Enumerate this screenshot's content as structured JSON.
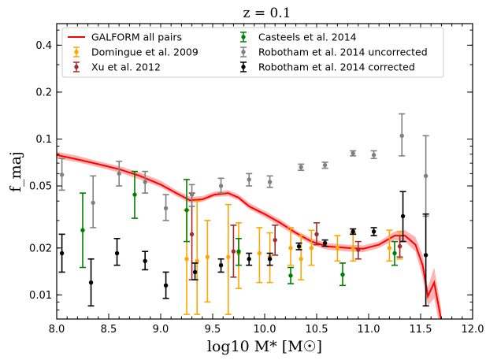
{
  "chart_data": {
    "type": "scatter",
    "title": "z = 0.1",
    "xlabel": "log10 M* [M☉]",
    "ylabel": "f_maj",
    "xlim": [
      8.0,
      12.0
    ],
    "ylim": [
      0.007,
      0.55
    ],
    "yscale": "log",
    "xticks": [
      "8.0",
      "8.5",
      "9.0",
      "9.5",
      "10.0",
      "10.5",
      "11.0",
      "11.5",
      "12.0"
    ],
    "yticks": [
      "0.01",
      "0.02",
      "0.05",
      "0.1",
      "0.2",
      "0.4"
    ],
    "grid": false,
    "legend_position": "top",
    "model": {
      "name": "GALFORM all pairs",
      "color": "#ff0000",
      "band_color": "#ffb3b3",
      "points": [
        [
          8.0,
          0.079,
          0.075,
          0.083
        ],
        [
          8.2,
          0.074,
          0.071,
          0.078
        ],
        [
          8.4,
          0.069,
          0.066,
          0.072
        ],
        [
          8.6,
          0.064,
          0.061,
          0.067
        ],
        [
          8.8,
          0.058,
          0.055,
          0.061
        ],
        [
          9.0,
          0.051,
          0.049,
          0.054
        ],
        [
          9.15,
          0.045,
          0.043,
          0.047
        ],
        [
          9.28,
          0.0405,
          0.039,
          0.0425
        ],
        [
          9.4,
          0.041,
          0.0395,
          0.043
        ],
        [
          9.52,
          0.044,
          0.0425,
          0.046
        ],
        [
          9.65,
          0.045,
          0.043,
          0.047
        ],
        [
          9.75,
          0.042,
          0.0405,
          0.044
        ],
        [
          9.85,
          0.037,
          0.0355,
          0.039
        ],
        [
          10.0,
          0.033,
          0.0315,
          0.0345
        ],
        [
          10.15,
          0.029,
          0.0275,
          0.0305
        ],
        [
          10.3,
          0.025,
          0.024,
          0.026
        ],
        [
          10.45,
          0.022,
          0.021,
          0.023
        ],
        [
          10.6,
          0.0205,
          0.0195,
          0.0215
        ],
        [
          10.8,
          0.02,
          0.019,
          0.021
        ],
        [
          10.95,
          0.0198,
          0.0188,
          0.0208
        ],
        [
          11.1,
          0.021,
          0.02,
          0.022
        ],
        [
          11.25,
          0.024,
          0.0225,
          0.0255
        ],
        [
          11.35,
          0.024,
          0.022,
          0.026
        ],
        [
          11.45,
          0.021,
          0.019,
          0.0235
        ],
        [
          11.52,
          0.0155,
          0.013,
          0.018
        ],
        [
          11.57,
          0.0098,
          0.0085,
          0.0112
        ],
        [
          11.63,
          0.012,
          0.0095,
          0.015
        ],
        [
          11.7,
          0.0068,
          0.0055,
          0.008
        ]
      ]
    },
    "series": [
      {
        "name": "Domingue et al. 2009",
        "color": "#ffa500",
        "points": [
          [
            9.25,
            0.017,
            0.0075,
            0.035
          ],
          [
            9.35,
            0.0165,
            0.0075,
            0.04
          ],
          [
            9.45,
            0.0175,
            0.009,
            0.03
          ],
          [
            9.65,
            0.0175,
            0.0075,
            0.038
          ],
          [
            9.75,
            0.0185,
            0.011,
            0.029
          ],
          [
            9.95,
            0.0185,
            0.012,
            0.027
          ],
          [
            10.05,
            0.0175,
            0.012,
            0.025
          ],
          [
            10.25,
            0.02,
            0.0155,
            0.027
          ],
          [
            10.35,
            0.017,
            0.0125,
            0.024
          ],
          [
            10.45,
            0.02,
            0.0155,
            0.026
          ],
          [
            10.7,
            0.02,
            0.0165,
            0.024
          ],
          [
            10.85,
            0.02,
            0.0165,
            0.025
          ],
          [
            11.2,
            0.02,
            0.0165,
            0.026
          ],
          [
            11.3,
            0.0205,
            0.017,
            0.0255
          ]
        ]
      },
      {
        "name": "Xu et al. 2012",
        "color": "#a52a2a",
        "points": [
          [
            9.3,
            0.0245,
            0.0125,
            0.045
          ],
          [
            9.7,
            0.019,
            0.013,
            0.028
          ],
          [
            10.1,
            0.0225,
            0.018,
            0.028
          ],
          [
            10.5,
            0.0245,
            0.021,
            0.029
          ],
          [
            10.9,
            0.0195,
            0.017,
            0.022
          ],
          [
            11.3,
            0.0205,
            0.0175,
            0.024
          ]
        ]
      },
      {
        "name": "Casteels et al. 2014",
        "color": "#008000",
        "points": [
          [
            8.25,
            0.026,
            0.015,
            0.045
          ],
          [
            8.75,
            0.044,
            0.031,
            0.062
          ],
          [
            9.25,
            0.035,
            0.022,
            0.055
          ],
          [
            9.75,
            0.019,
            0.0155,
            0.023
          ],
          [
            10.25,
            0.0133,
            0.0118,
            0.015
          ],
          [
            10.75,
            0.0135,
            0.0115,
            0.016
          ],
          [
            11.25,
            0.0185,
            0.0155,
            0.022
          ]
        ]
      },
      {
        "name": "Robotham et al. 2014 uncorrected",
        "color": "#808080",
        "points": [
          [
            8.05,
            0.059,
            0.047,
            0.075
          ],
          [
            8.35,
            0.039,
            0.027,
            0.058
          ],
          [
            8.6,
            0.06,
            0.05,
            0.072
          ],
          [
            8.85,
            0.053,
            0.045,
            0.062
          ],
          [
            9.05,
            0.036,
            0.03,
            0.044
          ],
          [
            9.3,
            0.044,
            0.037,
            0.051
          ],
          [
            9.58,
            0.05,
            0.045,
            0.056
          ],
          [
            9.85,
            0.055,
            0.05,
            0.06
          ],
          [
            10.05,
            0.053,
            0.049,
            0.058
          ],
          [
            10.35,
            0.066,
            0.063,
            0.069
          ],
          [
            10.58,
            0.068,
            0.065,
            0.071
          ],
          [
            10.85,
            0.081,
            0.078,
            0.084
          ],
          [
            11.05,
            0.079,
            0.075,
            0.084
          ],
          [
            11.32,
            0.105,
            0.078,
            0.145
          ],
          [
            11.55,
            0.058,
            0.032,
            0.105
          ]
        ]
      },
      {
        "name": "Robotham et al. 2014 corrected",
        "color": "#000000",
        "points": [
          [
            8.05,
            0.0185,
            0.014,
            0.0245
          ],
          [
            8.33,
            0.012,
            0.0085,
            0.017
          ],
          [
            8.58,
            0.0185,
            0.0155,
            0.023
          ],
          [
            8.85,
            0.0165,
            0.0145,
            0.019
          ],
          [
            9.05,
            0.0115,
            0.0095,
            0.014
          ],
          [
            9.33,
            0.014,
            0.0125,
            0.016
          ],
          [
            9.58,
            0.0155,
            0.014,
            0.017
          ],
          [
            9.85,
            0.017,
            0.0155,
            0.0185
          ],
          [
            10.05,
            0.017,
            0.0155,
            0.0185
          ],
          [
            10.33,
            0.0205,
            0.0195,
            0.0215
          ],
          [
            10.58,
            0.0215,
            0.0205,
            0.0225
          ],
          [
            10.85,
            0.0255,
            0.0245,
            0.0265
          ],
          [
            11.05,
            0.0255,
            0.024,
            0.027
          ],
          [
            11.33,
            0.032,
            0.022,
            0.046
          ],
          [
            11.55,
            0.018,
            0.0085,
            0.033
          ]
        ]
      }
    ]
  }
}
